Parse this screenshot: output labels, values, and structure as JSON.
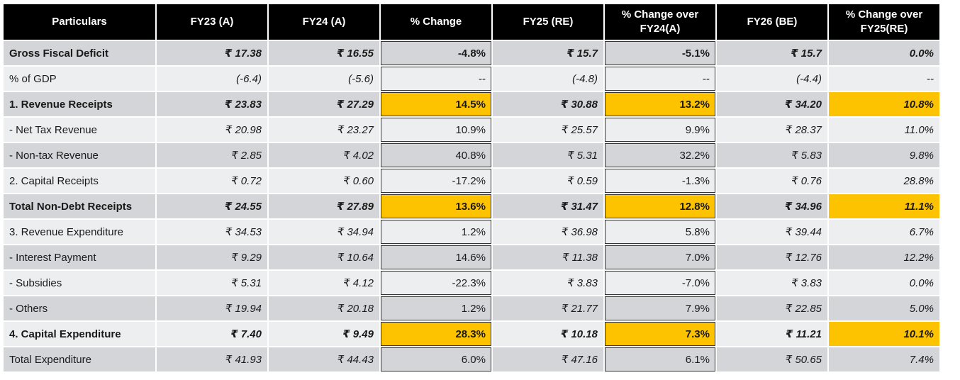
{
  "header": [
    "Particulars",
    "FY23 (A)",
    "FY24 (A)",
    "% Change",
    "FY25 (RE)",
    "% Change over FY24(A)",
    "FY26 (BE)",
    "% Change over FY25(RE)"
  ],
  "highlight_color": "#fdc200",
  "rows": [
    {
      "cells": [
        "Gross Fiscal Deficit",
        "₹ 17.38",
        "₹ 16.55",
        "-4.8%",
        "₹ 15.7",
        "-5.1%",
        "₹ 15.7",
        "0.0%"
      ],
      "bold": true,
      "highlight": false
    },
    {
      "cells": [
        "% of GDP",
        "(-6.4)",
        "(-5.6)",
        "--",
        "(-4.8)",
        "--",
        "(-4.4)",
        "--"
      ],
      "bold": false,
      "highlight": false
    },
    {
      "cells": [
        "1. Revenue Receipts",
        "₹ 23.83",
        "₹ 27.29",
        "14.5%",
        "₹ 30.88",
        "13.2%",
        "₹ 34.20",
        "10.8%"
      ],
      "bold": true,
      "highlight": true
    },
    {
      "cells": [
        " - Net Tax Revenue",
        "₹ 20.98",
        "₹ 23.27",
        "10.9%",
        "₹ 25.57",
        "9.9%",
        "₹ 28.37",
        "11.0%"
      ],
      "bold": false,
      "highlight": false
    },
    {
      "cells": [
        " - Non-tax Revenue",
        "₹ 2.85",
        "₹ 4.02",
        "40.8%",
        "₹ 5.31",
        "32.2%",
        "₹ 5.83",
        "9.8%"
      ],
      "bold": false,
      "highlight": false
    },
    {
      "cells": [
        "2. Capital Receipts",
        "₹ 0.72",
        "₹ 0.60",
        "-17.2%",
        "₹ 0.59",
        "-1.3%",
        "₹ 0.76",
        "28.8%"
      ],
      "bold": false,
      "highlight": false
    },
    {
      "cells": [
        "Total Non-Debt Receipts",
        "₹ 24.55",
        "₹ 27.89",
        "13.6%",
        "₹ 31.47",
        "12.8%",
        "₹ 34.96",
        "11.1%"
      ],
      "bold": true,
      "highlight": true
    },
    {
      "cells": [
        "3. Revenue Expenditure",
        "₹ 34.53",
        "₹ 34.94",
        "1.2%",
        "₹ 36.98",
        "5.8%",
        "₹ 39.44",
        "6.7%"
      ],
      "bold": false,
      "highlight": false
    },
    {
      "cells": [
        "- Interest Payment",
        "₹ 9.29",
        "₹ 10.64",
        "14.6%",
        "₹ 11.38",
        "7.0%",
        "₹ 12.76",
        "12.2%"
      ],
      "bold": false,
      "highlight": false
    },
    {
      "cells": [
        "- Subsidies",
        "₹ 5.31",
        "₹ 4.12",
        "-22.3%",
        "₹ 3.83",
        "-7.0%",
        "₹ 3.83",
        "0.0%"
      ],
      "bold": false,
      "highlight": false
    },
    {
      "cells": [
        "- Others",
        "₹ 19.94",
        "₹ 20.18",
        "1.2%",
        "₹ 21.77",
        "7.9%",
        "₹ 22.85",
        "5.0%"
      ],
      "bold": false,
      "highlight": false
    },
    {
      "cells": [
        "4. Capital Expenditure",
        "₹ 7.40",
        "₹ 9.49",
        "28.3%",
        "₹ 10.18",
        "7.3%",
        "₹ 11.21",
        "10.1%"
      ],
      "bold": true,
      "highlight": true
    },
    {
      "cells": [
        "Total Expenditure",
        "₹ 41.93",
        "₹ 44.43",
        "6.0%",
        "₹ 47.16",
        "6.1%",
        "₹ 50.65",
        "7.4%"
      ],
      "bold": false,
      "highlight": false
    }
  ]
}
